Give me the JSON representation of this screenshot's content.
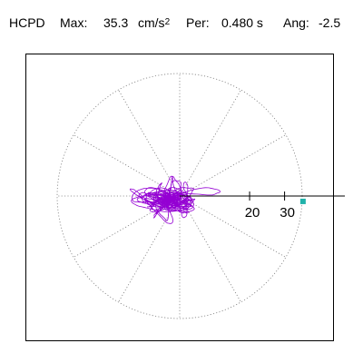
{
  "header": {
    "code": "HCPD",
    "max_label": "Max:",
    "max_value": "35.3",
    "max_unit": "cm/s",
    "max_unit_exp": "2",
    "period_label": "Per:",
    "period_value": "0.480 s",
    "angle_label": "Ang:",
    "angle_value": "-2.5"
  },
  "colors": {
    "trace": "#9400d3",
    "grid": "#808080",
    "peak_marker": "#20b2aa",
    "frame": "#000000"
  },
  "chart_data": {
    "type": "polar-orbit",
    "title": "",
    "ring_label_values": [
      20,
      30
    ],
    "ring_labels": [
      "20",
      "30"
    ],
    "peak_amplitude": 35.3,
    "peak_angle_deg": -2.5,
    "grid": true
  }
}
